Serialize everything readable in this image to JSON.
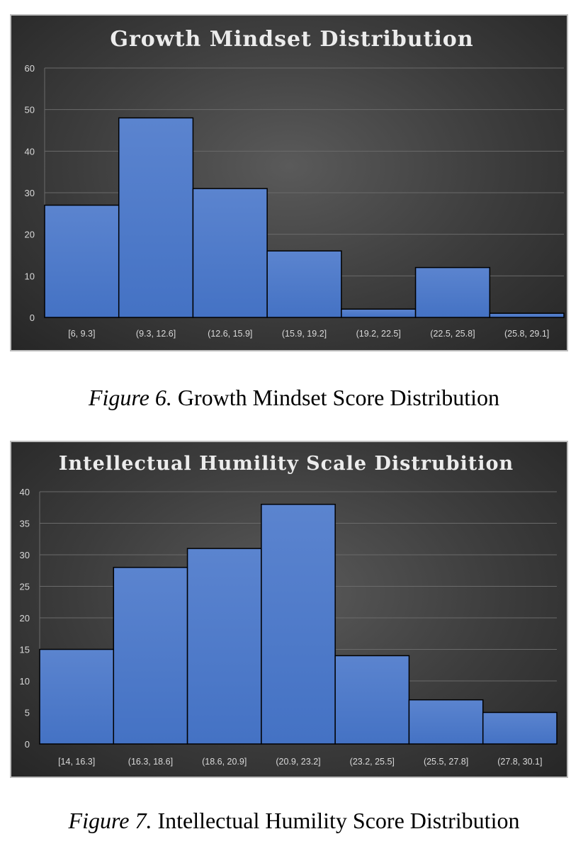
{
  "figures": [
    {
      "caption_number": "Figure 6.",
      "caption_text": "Growth Mindset Score Distribution"
    },
    {
      "caption_number": "Figure 7.",
      "caption_text": "Intellectual Humility Score Distribution"
    }
  ],
  "colors": {
    "bar_fill": "#4472c4",
    "bar_stroke": "#000000",
    "grid": "#6a6a6a",
    "text": "#d9d9d9"
  },
  "chart_data": [
    {
      "type": "bar",
      "title": "Growth Mindset Distribution",
      "xlabel": "",
      "ylabel": "",
      "categories": [
        "[6, 9.3]",
        "(9.3, 12.6]",
        "(12.6, 15.9]",
        "(15.9, 19.2]",
        "(19.2, 22.5]",
        "(22.5, 25.8]",
        "(25.8, 29.1]"
      ],
      "values": [
        27,
        48,
        31,
        16,
        2,
        12,
        1
      ],
      "ylim": [
        0,
        60
      ],
      "yticks": [
        0,
        10,
        20,
        30,
        40,
        50,
        60
      ],
      "grid": true,
      "legend": "none"
    },
    {
      "type": "bar",
      "title": "Intellectual Humility Scale Distrubition",
      "xlabel": "",
      "ylabel": "",
      "categories": [
        "[14, 16.3]",
        "(16.3, 18.6]",
        "(18.6, 20.9]",
        "(20.9, 23.2]",
        "(23.2, 25.5]",
        "(25.5, 27.8]",
        "(27.8, 30.1]"
      ],
      "values": [
        15,
        28,
        31,
        38,
        14,
        7,
        5
      ],
      "ylim": [
        0,
        40
      ],
      "yticks": [
        0,
        5,
        10,
        15,
        20,
        25,
        30,
        35,
        40
      ],
      "grid": true,
      "legend": "none"
    }
  ]
}
